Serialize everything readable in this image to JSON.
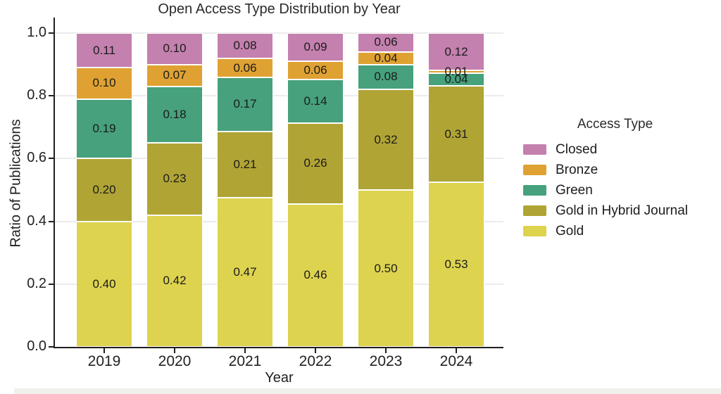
{
  "chart_data": {
    "type": "bar",
    "stacked": true,
    "title": "Open Access Type Distribution by Year",
    "xlabel": "Year",
    "ylabel": "Ratio of Publications",
    "categories": [
      "2019",
      "2020",
      "2021",
      "2022",
      "2023",
      "2024"
    ],
    "series": [
      {
        "name": "Gold",
        "color": "#ddd34f",
        "values": [
          0.4,
          0.42,
          0.47,
          0.46,
          0.5,
          0.53
        ]
      },
      {
        "name": "Gold in Hybrid Journal",
        "color": "#b0a435",
        "values": [
          0.2,
          0.23,
          0.21,
          0.26,
          0.32,
          0.31
        ]
      },
      {
        "name": "Green",
        "color": "#46a17c",
        "values": [
          0.19,
          0.18,
          0.17,
          0.14,
          0.08,
          0.04
        ]
      },
      {
        "name": "Bronze",
        "color": "#dfa232",
        "values": [
          0.1,
          0.07,
          0.06,
          0.06,
          0.04,
          0.01
        ]
      },
      {
        "name": "Closed",
        "color": "#c480ae",
        "values": [
          0.11,
          0.1,
          0.08,
          0.09,
          0.06,
          0.12
        ]
      }
    ],
    "yticks": [
      "0.0",
      "0.2",
      "0.4",
      "0.6",
      "0.8",
      "1.0"
    ],
    "ylim": [
      0.0,
      1.05
    ],
    "grid": true,
    "bar_edge_color": "#ffffff",
    "legend": {
      "title": "Access Type",
      "position": "right",
      "entries": [
        "Closed",
        "Bronze",
        "Green",
        "Gold in Hybrid Journal",
        "Gold"
      ]
    }
  }
}
